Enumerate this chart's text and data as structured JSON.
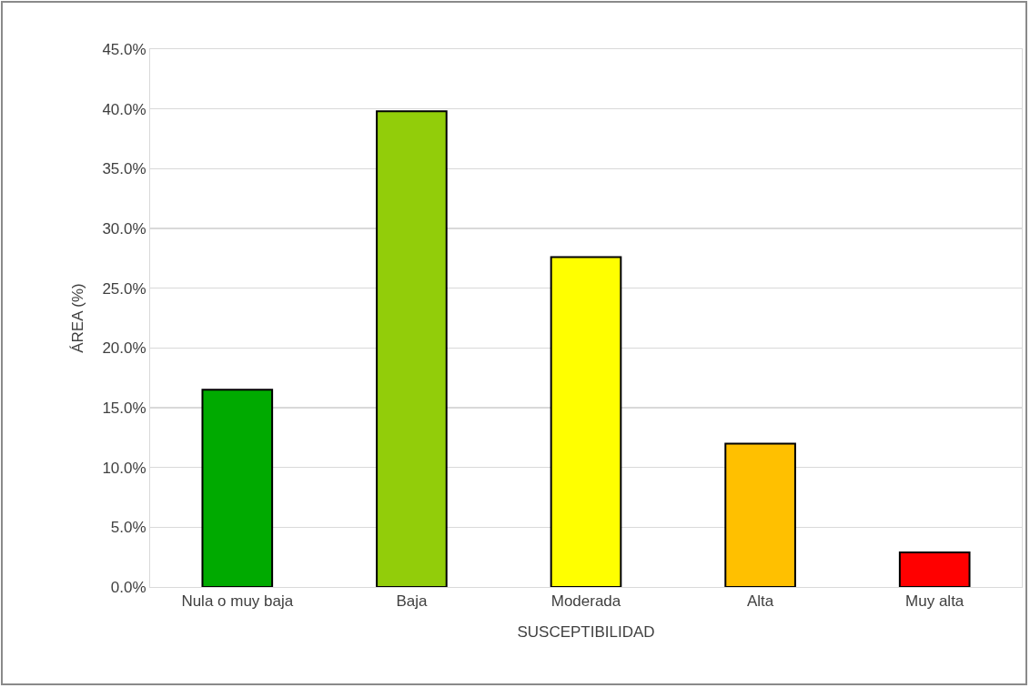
{
  "chart_data": {
    "type": "bar",
    "xlabel": "SUSCEPTIBILIDAD",
    "ylabel": "ÁREA (%)",
    "categories": [
      "Nula o muy baja",
      "Baja",
      "Moderada",
      "Alta",
      "Muy alta"
    ],
    "values": [
      16.5,
      39.8,
      27.6,
      12.0,
      2.9
    ],
    "colors": [
      "#00aa00",
      "#92cd0a",
      "#ffff00",
      "#ffc000",
      "#ff0000"
    ],
    "ylim": [
      0,
      45
    ],
    "yticks": [
      {
        "value": 0,
        "label": "0.0%"
      },
      {
        "value": 5,
        "label": "5.0%"
      },
      {
        "value": 10,
        "label": "10.0%"
      },
      {
        "value": 15,
        "label": "15.0%"
      },
      {
        "value": 20,
        "label": "20.0%"
      },
      {
        "value": 25,
        "label": "25.0%"
      },
      {
        "value": 30,
        "label": "30.0%"
      },
      {
        "value": 35,
        "label": "35.0%"
      },
      {
        "value": 40,
        "label": "40.0%"
      },
      {
        "value": 45,
        "label": "45.0%"
      }
    ],
    "grid": "y",
    "legend": false
  }
}
